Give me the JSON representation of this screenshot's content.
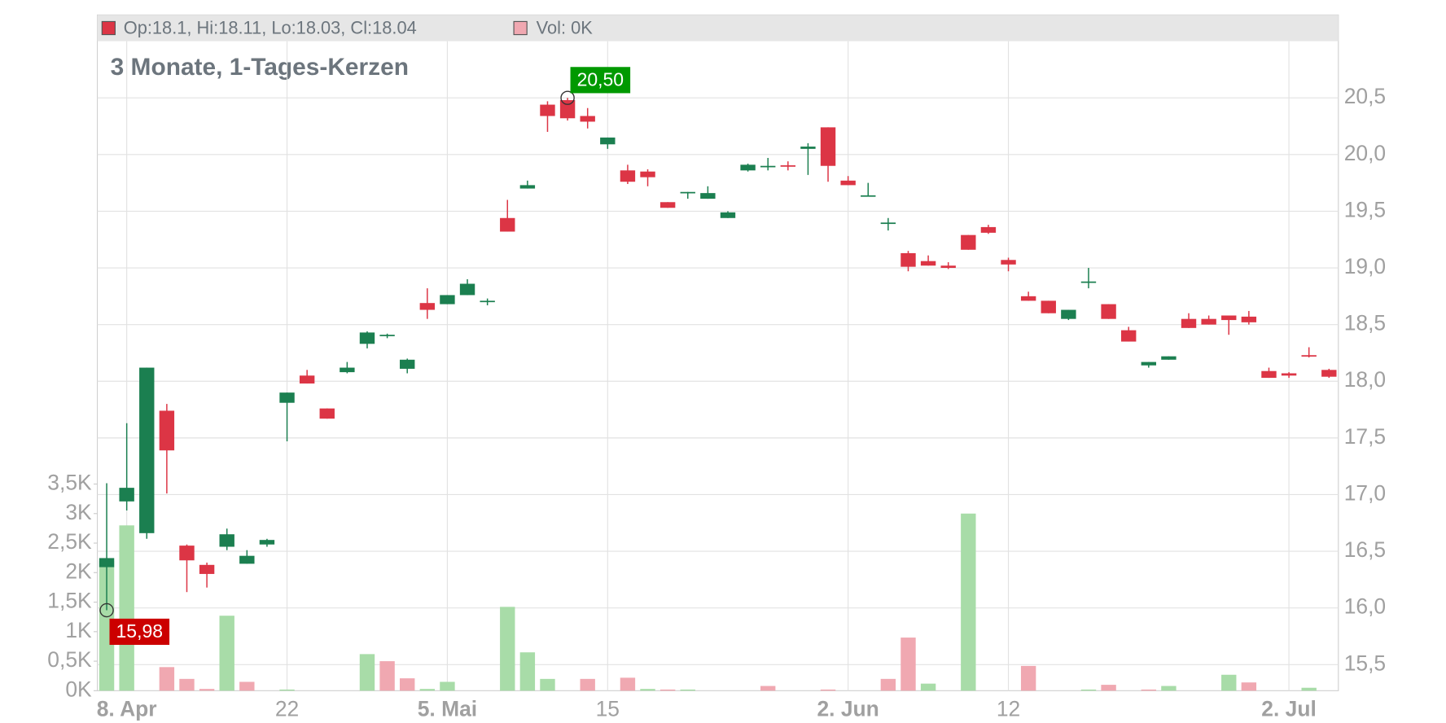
{
  "chart_data": {
    "type": "candlestick",
    "title": "3 Monate, 1-Tages-Kerzen",
    "header": {
      "ohlc": "Op:18.1, Hi:18.11, Lo:18.03, Cl:18.04",
      "volume": "Vol: 0K"
    },
    "categories": [
      null,
      "8. Apr",
      null,
      null,
      null,
      null,
      null,
      null,
      null,
      "22",
      null,
      null,
      null,
      null,
      null,
      null,
      null,
      "5. Mai",
      null,
      null,
      null,
      null,
      null,
      null,
      null,
      "15",
      null,
      null,
      null,
      null,
      null,
      null,
      null,
      null,
      null,
      null,
      null,
      "2. Jun",
      null,
      null,
      null,
      null,
      null,
      null,
      null,
      "12",
      null,
      null,
      null,
      null,
      null,
      null,
      null,
      null,
      null,
      null,
      null,
      null,
      null,
      "2. Jul",
      null,
      null
    ],
    "open": [
      16.36,
      16.94,
      16.66,
      17.74,
      16.55,
      16.38,
      16.54,
      16.39,
      16.56,
      17.81,
      18.05,
      17.76,
      18.08,
      18.33,
      18.4,
      18.11,
      18.69,
      18.68,
      18.76,
      18.7,
      19.44,
      19.7,
      20.44,
      20.48,
      20.34,
      20.09,
      19.86,
      19.85,
      19.58,
      19.665,
      19.61,
      19.44,
      19.86,
      19.895,
      19.905,
      20.05,
      20.24,
      19.77,
      19.635,
      19.39,
      19.13,
      19.06,
      19.02,
      19.29,
      19.36,
      19.07,
      18.75,
      18.71,
      18.55,
      18.87,
      18.68,
      18.45,
      18.14,
      18.19,
      18.55,
      18.55,
      18.58,
      18.57,
      18.09,
      18.07,
      18.23,
      18.1
    ],
    "high": [
      17.1,
      17.63,
      18.12,
      17.8,
      16.56,
      16.4,
      16.7,
      16.51,
      16.61,
      17.9,
      18.1,
      17.76,
      18.17,
      18.44,
      18.42,
      18.2,
      18.82,
      18.76,
      18.9,
      18.73,
      19.6,
      19.77,
      20.47,
      20.5,
      20.41,
      20.15,
      19.91,
      19.87,
      19.58,
      19.67,
      19.72,
      19.5,
      19.92,
      19.97,
      19.94,
      20.1,
      20.24,
      19.81,
      19.75,
      19.44,
      19.15,
      19.11,
      19.05,
      19.29,
      19.38,
      19.09,
      18.79,
      18.71,
      18.63,
      19.0,
      18.68,
      18.48,
      18.17,
      18.22,
      18.6,
      18.58,
      18.58,
      18.62,
      18.12,
      18.08,
      18.3,
      18.11
    ],
    "low": [
      15.98,
      16.86,
      16.61,
      17.01,
      16.14,
      16.18,
      16.51,
      16.39,
      16.54,
      17.47,
      17.98,
      17.67,
      18.07,
      18.29,
      18.38,
      18.07,
      18.55,
      18.68,
      18.76,
      18.67,
      19.32,
      19.7,
      20.2,
      20.3,
      20.23,
      20.05,
      19.74,
      19.72,
      19.53,
      19.61,
      19.61,
      19.44,
      19.85,
      19.86,
      19.86,
      19.82,
      19.76,
      19.73,
      19.63,
      19.33,
      18.97,
      19.02,
      18.99,
      19.16,
      19.3,
      18.97,
      18.71,
      18.6,
      18.54,
      18.82,
      18.55,
      18.35,
      18.12,
      18.19,
      18.47,
      18.5,
      18.41,
      18.5,
      18.03,
      18.03,
      18.21,
      18.03
    ],
    "close": [
      16.44,
      17.06,
      18.12,
      17.39,
      16.42,
      16.3,
      16.65,
      16.46,
      16.6,
      17.9,
      17.98,
      17.67,
      18.12,
      18.43,
      18.41,
      18.19,
      18.63,
      18.76,
      18.86,
      18.71,
      19.32,
      19.73,
      20.34,
      20.32,
      20.29,
      20.15,
      19.76,
      19.8,
      19.53,
      19.67,
      19.66,
      19.49,
      19.91,
      19.9,
      19.9,
      20.07,
      19.9,
      19.73,
      19.64,
      19.4,
      19.01,
      19.02,
      19.0,
      19.16,
      19.31,
      19.03,
      18.71,
      18.6,
      18.63,
      18.88,
      18.55,
      18.35,
      18.17,
      18.22,
      18.47,
      18.5,
      18.54,
      18.52,
      18.03,
      18.05,
      18.22,
      18.04
    ],
    "volume": [
      2200,
      2800,
      null,
      400,
      200,
      30,
      1270,
      150,
      null,
      20,
      null,
      null,
      null,
      620,
      500,
      210,
      30,
      150,
      null,
      null,
      1420,
      650,
      200,
      null,
      200,
      null,
      220,
      30,
      20,
      20,
      null,
      null,
      null,
      80,
      null,
      null,
      20,
      null,
      null,
      200,
      900,
      120,
      null,
      3000,
      null,
      null,
      420,
      null,
      null,
      20,
      100,
      null,
      20,
      80,
      null,
      null,
      270,
      140,
      null,
      null,
      50,
      null
    ],
    "up_color": "#1b7f50",
    "down_color": "#dc3545",
    "volume_up_color": "#a8dca8",
    "volume_down_color": "#f0a8b1",
    "ylim": [
      15.27,
      21.0
    ],
    "yticks": [
      {
        "value": 15.5,
        "label": "15,5"
      },
      {
        "value": 16,
        "label": "16,0"
      },
      {
        "value": 16.5,
        "label": "16,5"
      },
      {
        "value": 17,
        "label": "17,0"
      },
      {
        "value": 17.5,
        "label": "17,5"
      },
      {
        "value": 18,
        "label": "18,0"
      },
      {
        "value": 18.5,
        "label": "18,5"
      },
      {
        "value": 19,
        "label": "19,0"
      },
      {
        "value": 19.5,
        "label": "19,5"
      },
      {
        "value": 20,
        "label": "20,0"
      },
      {
        "value": 20.5,
        "label": "20,5"
      }
    ],
    "y2lim": [
      0,
      11000
    ],
    "y2ticks": [
      {
        "value": 0,
        "label": "0K"
      },
      {
        "value": 500,
        "label": "0,5K"
      },
      {
        "value": 1000,
        "label": "1K"
      },
      {
        "value": 1500,
        "label": "1,5K"
      },
      {
        "value": 2000,
        "label": "2K"
      },
      {
        "value": 2500,
        "label": "2,5K"
      },
      {
        "value": 3000,
        "label": "3K"
      },
      {
        "value": 3500,
        "label": "3,5K"
      }
    ],
    "high_label": {
      "value": 20.5,
      "label": "20,50",
      "color": "#009900"
    },
    "low_label": {
      "value": 15.98,
      "label": "15,98",
      "color": "#cc0000"
    },
    "grid": true
  }
}
